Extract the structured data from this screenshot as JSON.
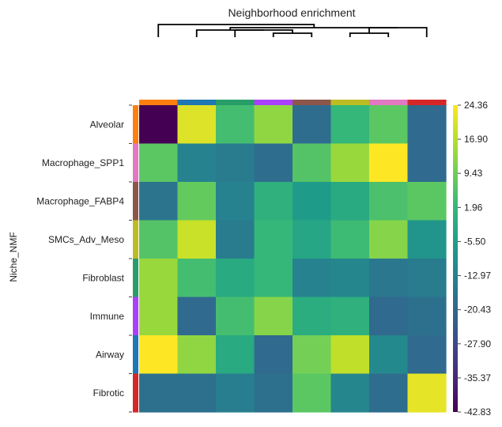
{
  "chart_data": {
    "type": "heatmap",
    "title": "Neighborhood enrichment",
    "ylabel": "Niche_NMF",
    "xlabel": "",
    "rows": [
      "Alveolar",
      "Macrophage_SPP1",
      "Macrophage_FABP4",
      "SMCs_Adv_Meso",
      "Fibroblast",
      "Immune",
      "Airway",
      "Fibrotic"
    ],
    "row_colors": [
      "#ff7f0e",
      "#e377c2",
      "#8c564b",
      "#bcbd22",
      "#279e68",
      "#aa40fc",
      "#1f77b4",
      "#d62728"
    ],
    "column_colors": [
      "#ff7f0e",
      "#1f77b4",
      "#279e68",
      "#aa40fc",
      "#8c564b",
      "#bcbd22",
      "#e377c2",
      "#d62728"
    ],
    "values": [
      [
        -42.8,
        21.0,
        4.0,
        13.0,
        -19.0,
        2.0,
        7.0,
        -20.0
      ],
      [
        7.0,
        -13.0,
        -15.0,
        -19.0,
        6.0,
        14.0,
        24.4,
        -20.0
      ],
      [
        -17.0,
        8.0,
        -13.0,
        0.0,
        -6.0,
        -2.0,
        5.0,
        7.0
      ],
      [
        6.0,
        19.0,
        -15.0,
        2.0,
        -3.0,
        3.0,
        12.0,
        -8.0
      ],
      [
        14.0,
        4.0,
        -2.0,
        2.0,
        -13.0,
        -12.0,
        -16.0,
        -15.0
      ],
      [
        14.0,
        -20.0,
        4.0,
        12.0,
        -1.0,
        0.0,
        -20.0,
        -18.0
      ],
      [
        24.4,
        13.0,
        -2.0,
        -20.0,
        10.0,
        18.0,
        -11.0,
        -20.0
      ],
      [
        -18.0,
        -18.0,
        -14.0,
        -18.0,
        7.0,
        -12.0,
        -19.0,
        22.0
      ]
    ],
    "colorbar": {
      "min": -42.83,
      "max": 24.36,
      "tick_labels": [
        "24.36",
        "16.90",
        "9.43",
        "1.96",
        "-5.50",
        "-12.97",
        "-20.43",
        "-27.90",
        "-35.37",
        "-42.83"
      ]
    },
    "colormap": "viridis",
    "dendrogram": "top"
  }
}
